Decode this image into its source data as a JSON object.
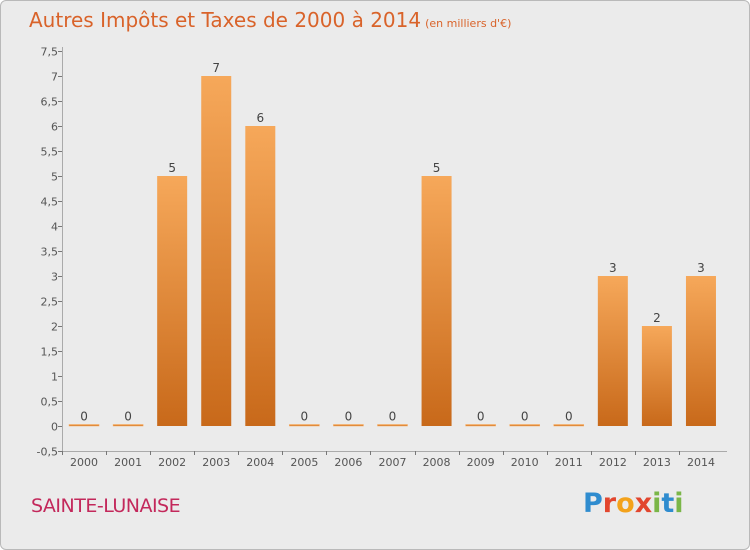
{
  "title": "Autres Impôts et Taxes de 2000 à 2014",
  "subtitle": "(en milliers d'€)",
  "place_name": "SAINTE-LUNAISE",
  "logo": {
    "letters": [
      "P",
      "r",
      "o",
      "x",
      "i",
      "t",
      "i"
    ],
    "colors": [
      "#2f8ccf",
      "#e2462e",
      "#f3a21b",
      "#e2462e",
      "#7ab648",
      "#2f8ccf",
      "#7ab648"
    ]
  },
  "colors": {
    "bar_light": "#f6a85a",
    "bar_dark": "#c8691a",
    "title": "#d9632a",
    "place": "#c3285b"
  },
  "chart_data": {
    "type": "bar",
    "categories": [
      "2000",
      "2001",
      "2002",
      "2003",
      "2004",
      "2005",
      "2006",
      "2007",
      "2008",
      "2009",
      "2010",
      "2011",
      "2012",
      "2013",
      "2014"
    ],
    "values": [
      0,
      0,
      5,
      7,
      6,
      0,
      0,
      0,
      5,
      0,
      0,
      0,
      3,
      2,
      3
    ],
    "data_labels": [
      "0",
      "0",
      "5",
      "7",
      "6",
      "0",
      "0",
      "0",
      "5",
      "0",
      "0",
      "0",
      "3",
      "2",
      "3"
    ],
    "ylim": [
      -0.5,
      7.5
    ],
    "y_ticks": [
      "-0,5",
      "0",
      "0,5",
      "1",
      "1,5",
      "2",
      "2,5",
      "3",
      "3,5",
      "4",
      "4,5",
      "5",
      "5,5",
      "6",
      "6,5",
      "7",
      "7,5"
    ],
    "y_tick_values": [
      -0.5,
      0,
      0.5,
      1,
      1.5,
      2,
      2.5,
      3,
      3.5,
      4,
      4.5,
      5,
      5.5,
      6,
      6.5,
      7,
      7.5
    ],
    "grid": false,
    "legend": "none"
  }
}
